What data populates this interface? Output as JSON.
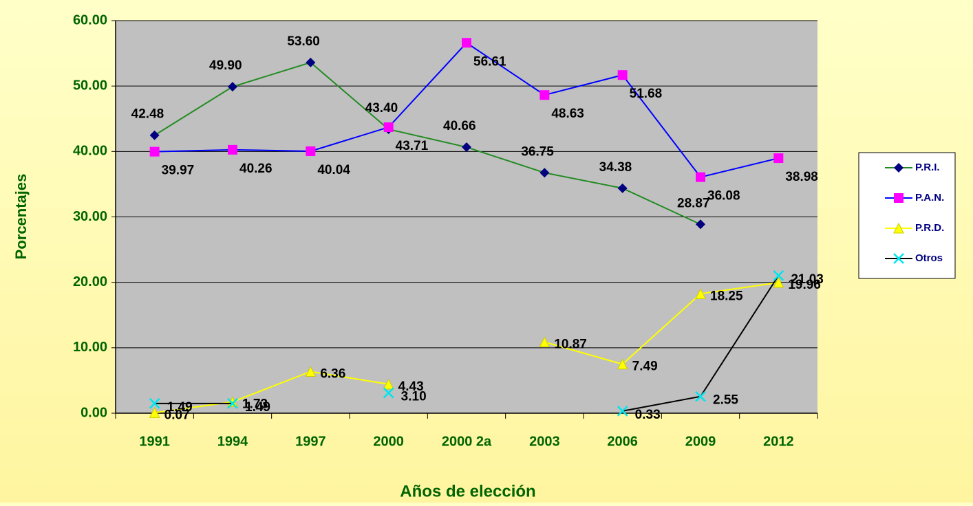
{
  "chart_data": {
    "type": "line",
    "y_label": "Porcentajes",
    "x_label": "Años de elección",
    "categories": [
      "1991",
      "1994",
      "1997",
      "2000",
      "2000 2a",
      "2003",
      "2006",
      "2009",
      "2012"
    ],
    "ylim": [
      0,
      60
    ],
    "yticks": [
      {
        "value": 0,
        "label": "0.00"
      },
      {
        "value": 10,
        "label": "10.00"
      },
      {
        "value": 20,
        "label": "20.00"
      },
      {
        "value": 30,
        "label": "30.00"
      },
      {
        "value": 40,
        "label": "40.00"
      },
      {
        "value": 50,
        "label": "50.00"
      },
      {
        "value": 60,
        "label": "60.00"
      }
    ],
    "grid": true,
    "legend": "right",
    "series": [
      {
        "name": "P.R.I.",
        "color": "#228b22",
        "marker": "diamond",
        "marker_color": "#000080",
        "values": [
          42.48,
          49.9,
          53.6,
          43.4,
          40.66,
          36.75,
          34.38,
          28.87,
          null
        ],
        "value_labels": [
          "42.48",
          "49.90",
          "53.60",
          "43.40",
          "40.66",
          "36.75",
          "34.38",
          "28.87",
          null
        ]
      },
      {
        "name": "P.A.N.",
        "color": "#0000ff",
        "marker": "square",
        "marker_color": "#ff00ff",
        "values": [
          39.97,
          40.26,
          40.04,
          43.71,
          56.61,
          48.63,
          51.68,
          36.08,
          38.98
        ],
        "value_labels": [
          "39.97",
          "40.26",
          "40.04",
          "43.71",
          "56.61",
          "48.63",
          "51.68",
          "36.08",
          "38.98"
        ]
      },
      {
        "name": "P.R.D.",
        "color": "#ffff00",
        "marker": "triangle",
        "marker_color": "#ffff00",
        "values": [
          0.07,
          1.73,
          6.36,
          4.43,
          null,
          10.87,
          7.49,
          18.25,
          19.96
        ],
        "value_labels": [
          "0.07",
          "1.73",
          "6.36",
          "4.43",
          null,
          "10.87",
          "7.49",
          "18.25",
          "19.96"
        ]
      },
      {
        "name": "Otros",
        "color": "#000000",
        "marker": "x",
        "marker_color": "#00e5ee",
        "values": [
          1.49,
          1.49,
          null,
          3.1,
          null,
          null,
          0.33,
          2.55,
          21.03
        ],
        "value_labels": [
          "1.49",
          "1.49",
          null,
          "3.10",
          null,
          null,
          "0.33",
          "2.55",
          "21.03"
        ]
      }
    ]
  }
}
